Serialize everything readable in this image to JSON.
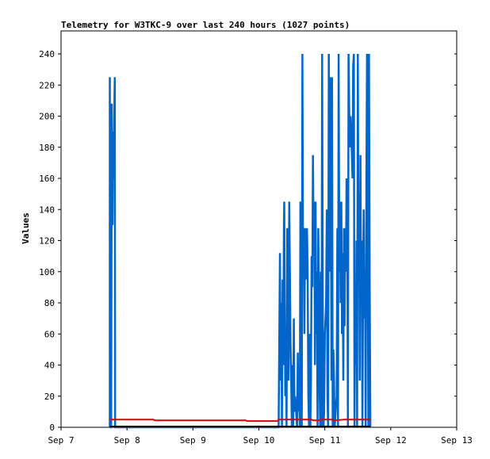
{
  "chart_data": {
    "type": "line",
    "title": "Telemetry for W3TKC-9 over last 240 hours (1027 points)",
    "xlabel": "",
    "ylabel": "Values",
    "x_ticks": [
      "Sep 7",
      "Sep 8",
      "Sep 9",
      "Sep 10",
      "Sep 11",
      "Sep 12",
      "Sep 13"
    ],
    "xlim_days": [
      0,
      6
    ],
    "ylim": [
      0,
      240
    ],
    "y_ticks": [
      0,
      20,
      40,
      60,
      80,
      100,
      120,
      140,
      160,
      180,
      200,
      220,
      240
    ],
    "grid": false,
    "legend": "none",
    "colors": {
      "series_blue": "#0066cc",
      "series_red": "#dd0000",
      "series_black": "#000000",
      "axis": "#000000"
    },
    "series": [
      {
        "color": "#0066cc",
        "points": [
          [
            0.74,
            0
          ],
          [
            0.74,
            225
          ],
          [
            0.75,
            0
          ],
          [
            0.76,
            0
          ],
          [
            0.77,
            208
          ],
          [
            0.78,
            130
          ],
          [
            0.79,
            190
          ],
          [
            0.8,
            160
          ],
          [
            0.81,
            212
          ],
          [
            0.815,
            225
          ],
          [
            0.82,
            0
          ],
          [
            3.3,
            0
          ],
          [
            3.31,
            60
          ],
          [
            3.32,
            112
          ],
          [
            3.33,
            30
          ],
          [
            3.34,
            80
          ],
          [
            3.35,
            0
          ],
          [
            3.36,
            95
          ],
          [
            3.37,
            40
          ],
          [
            3.38,
            130
          ],
          [
            3.385,
            145
          ],
          [
            3.39,
            100
          ],
          [
            3.4,
            20
          ],
          [
            3.41,
            55
          ],
          [
            3.42,
            0
          ],
          [
            3.43,
            128
          ],
          [
            3.44,
            75
          ],
          [
            3.45,
            30
          ],
          [
            3.46,
            145
          ],
          [
            3.47,
            100
          ],
          [
            3.48,
            55
          ],
          [
            3.49,
            30
          ],
          [
            3.5,
            0
          ],
          [
            3.51,
            40
          ],
          [
            3.52,
            0
          ],
          [
            3.53,
            70
          ],
          [
            3.54,
            10
          ],
          [
            3.55,
            20
          ],
          [
            3.58,
            0
          ],
          [
            3.59,
            48
          ],
          [
            3.6,
            10
          ],
          [
            3.61,
            40
          ],
          [
            3.62,
            0
          ],
          [
            3.63,
            145
          ],
          [
            3.64,
            60
          ],
          [
            3.65,
            0
          ],
          [
            3.66,
            240
          ],
          [
            3.67,
            100
          ],
          [
            3.68,
            128
          ],
          [
            3.69,
            60
          ],
          [
            3.7,
            120
          ],
          [
            3.71,
            128
          ],
          [
            3.72,
            95
          ],
          [
            3.73,
            128
          ],
          [
            3.74,
            100
          ],
          [
            3.75,
            20
          ],
          [
            3.76,
            0
          ],
          [
            3.77,
            60
          ],
          [
            3.78,
            0
          ],
          [
            3.79,
            30
          ],
          [
            3.8,
            110
          ],
          [
            3.81,
            90
          ],
          [
            3.82,
            175
          ],
          [
            3.83,
            120
          ],
          [
            3.84,
            145
          ],
          [
            3.85,
            40
          ],
          [
            3.86,
            145
          ],
          [
            3.87,
            60
          ],
          [
            3.88,
            100
          ],
          [
            3.89,
            0
          ],
          [
            3.9,
            128
          ],
          [
            3.91,
            90
          ],
          [
            3.92,
            30
          ],
          [
            3.93,
            0
          ],
          [
            3.94,
            100
          ],
          [
            3.95,
            0
          ],
          [
            3.96,
            240
          ],
          [
            3.97,
            60
          ],
          [
            3.98,
            0
          ],
          [
            3.99,
            10
          ],
          [
            4.0,
            60
          ],
          [
            4.02,
            80
          ],
          [
            4.03,
            140
          ],
          [
            4.04,
            20
          ],
          [
            4.05,
            0
          ],
          [
            4.06,
            240
          ],
          [
            4.07,
            100
          ],
          [
            4.08,
            140
          ],
          [
            4.09,
            225
          ],
          [
            4.1,
            30
          ],
          [
            4.11,
            225
          ],
          [
            4.12,
            0
          ],
          [
            4.13,
            50
          ],
          [
            4.14,
            30
          ],
          [
            4.15,
            0
          ],
          [
            4.18,
            20
          ],
          [
            4.19,
            128
          ],
          [
            4.2,
            0
          ],
          [
            4.21,
            240
          ],
          [
            4.22,
            100
          ],
          [
            4.23,
            145
          ],
          [
            4.24,
            80
          ],
          [
            4.25,
            145
          ],
          [
            4.26,
            60
          ],
          [
            4.27,
            112
          ],
          [
            4.28,
            30
          ],
          [
            4.29,
            128
          ],
          [
            4.3,
            65
          ],
          [
            4.31,
            128
          ],
          [
            4.32,
            100
          ],
          [
            4.33,
            160
          ],
          [
            4.34,
            140
          ],
          [
            4.35,
            0
          ],
          [
            4.36,
            240
          ],
          [
            4.37,
            205
          ],
          [
            4.38,
            180
          ],
          [
            4.39,
            200
          ],
          [
            4.4,
            190
          ],
          [
            4.41,
            175
          ],
          [
            4.42,
            160
          ],
          [
            4.43,
            232
          ],
          [
            4.44,
            240
          ],
          [
            4.45,
            0
          ],
          [
            4.46,
            80
          ],
          [
            4.47,
            40
          ],
          [
            4.48,
            120
          ],
          [
            4.49,
            0
          ],
          [
            4.5,
            240
          ],
          [
            4.51,
            110
          ],
          [
            4.52,
            150
          ],
          [
            4.53,
            30
          ],
          [
            4.54,
            175
          ],
          [
            4.55,
            80
          ],
          [
            4.56,
            120
          ],
          [
            4.57,
            0
          ],
          [
            4.58,
            90
          ],
          [
            4.59,
            140
          ],
          [
            4.6,
            70
          ],
          [
            4.61,
            100
          ],
          [
            4.62,
            0
          ],
          [
            4.63,
            160
          ],
          [
            4.64,
            240
          ],
          [
            4.65,
            140
          ],
          [
            4.66,
            0
          ],
          [
            4.67,
            240
          ],
          [
            4.68,
            100
          ],
          [
            4.69,
            0
          ]
        ]
      },
      {
        "color": "#dd0000",
        "points": [
          [
            0.74,
            5
          ],
          [
            1.4,
            5
          ],
          [
            1.42,
            4.5
          ],
          [
            2.8,
            4.5
          ],
          [
            2.82,
            4
          ],
          [
            3.28,
            4
          ],
          [
            3.3,
            5
          ],
          [
            3.8,
            5
          ],
          [
            3.82,
            4.5
          ],
          [
            3.9,
            4.5
          ],
          [
            3.95,
            5
          ],
          [
            4.1,
            5
          ],
          [
            4.15,
            4.5
          ],
          [
            4.3,
            5
          ],
          [
            4.69,
            5
          ]
        ]
      },
      {
        "color": "#000000",
        "points": [
          [
            0.74,
            0.5
          ],
          [
            4.69,
            0.5
          ]
        ]
      }
    ]
  }
}
